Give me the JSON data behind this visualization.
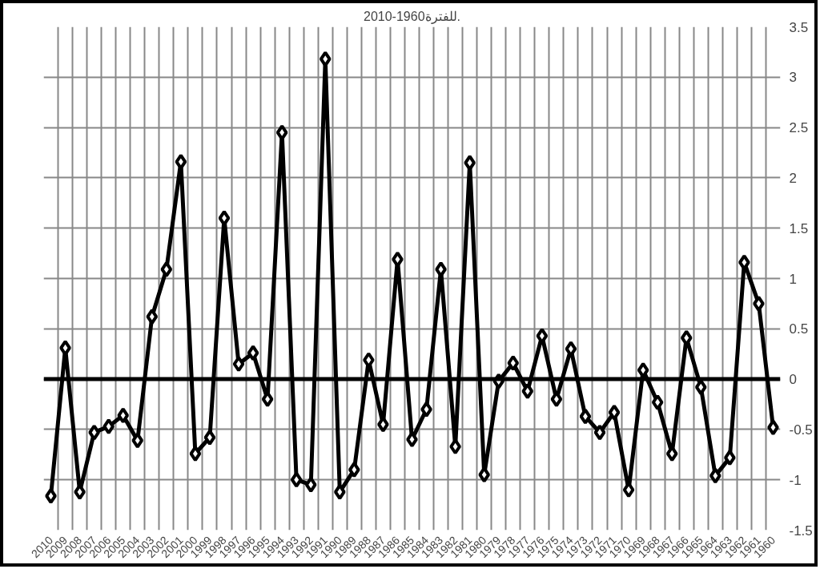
{
  "chart_data": {
    "type": "line",
    "title": "للفترة1960-2010.",
    "categories": [
      "2010",
      "2009",
      "2008",
      "2007",
      "2006",
      "2005",
      "2004",
      "2003",
      "2002",
      "2001",
      "2000",
      "1999",
      "1998",
      "1997",
      "1996",
      "1995",
      "1994",
      "1993",
      "1992",
      "1991",
      "1990",
      "1989",
      "1988",
      "1987",
      "1986",
      "1985",
      "1984",
      "1983",
      "1982",
      "1981",
      "1980",
      "1979",
      "1978",
      "1977",
      "1976",
      "1975",
      "1974",
      "1973",
      "1972",
      "1971",
      "1970",
      "1969",
      "1968",
      "1967",
      "1966",
      "1965",
      "1964",
      "1963",
      "1962",
      "1961",
      "1960"
    ],
    "series": [
      {
        "color": "#000000",
        "values": [
          -1.16,
          0.31,
          -1.12,
          -0.53,
          -0.47,
          -0.36,
          -0.61,
          0.62,
          1.09,
          2.16,
          -0.74,
          -0.58,
          1.6,
          0.15,
          0.26,
          -0.2,
          2.45,
          -1.0,
          -1.05,
          3.18,
          -1.12,
          -0.9,
          0.19,
          -0.45,
          1.19,
          -0.6,
          -0.3,
          1.09,
          -0.67,
          2.15,
          -0.95,
          -0.02,
          0.16,
          -0.12,
          0.43,
          -0.2,
          0.3,
          -0.37,
          -0.53,
          -0.33,
          -1.1,
          0.09,
          -0.23,
          -0.74,
          0.41,
          -0.08,
          -0.96,
          -0.78,
          1.16,
          0.75,
          -0.48
        ]
      }
    ],
    "ylim": [
      -1.5,
      3.5
    ],
    "yticks": [
      -1.5,
      -1,
      -0.5,
      0,
      0.5,
      1,
      1.5,
      2,
      2.5,
      3,
      3.5
    ],
    "grid": true,
    "marker": "diamond",
    "line_style": "solid"
  }
}
